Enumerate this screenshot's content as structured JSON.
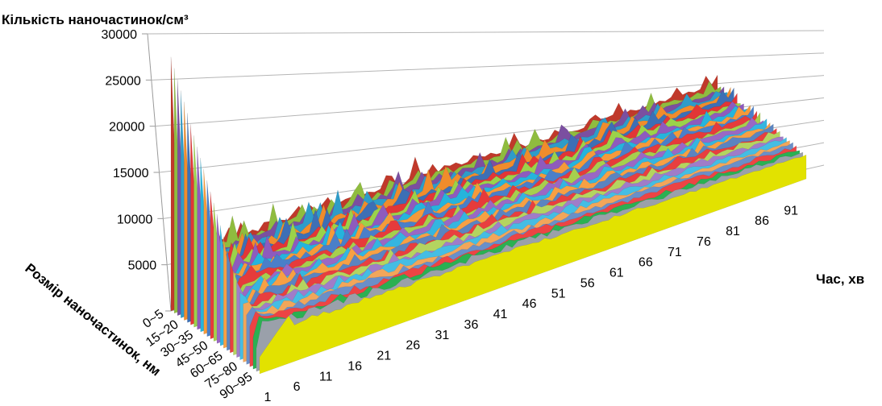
{
  "chart_data": {
    "type": "area",
    "subtype": "3d-area",
    "title": "",
    "ylabel": "Кількість наночастинок/см³",
    "xlabel": "Час, хв",
    "zlabel": "Розмір наночастинок, нм",
    "ylim": [
      0,
      30000
    ],
    "yticks": [
      "5000",
      "10000",
      "15000",
      "20000",
      "25000",
      "30000"
    ],
    "x_ticks": [
      "1",
      "6",
      "11",
      "16",
      "21",
      "26",
      "31",
      "36",
      "41",
      "46",
      "51",
      "56",
      "61",
      "66",
      "71",
      "76",
      "81",
      "86",
      "91"
    ],
    "x_count": 95,
    "z_ticks": [
      "0~5",
      "15~20",
      "30~35",
      "45~50",
      "60~65",
      "75~80",
      "90~95"
    ],
    "grid": true,
    "series_colors": [
      "#c0392b",
      "#8fbc3f",
      "#7b4fa0",
      "#2e9cc9",
      "#f08c2c",
      "#3d6fb5",
      "#e23636",
      "#9bd24a",
      "#8e5bbd",
      "#25b4dc",
      "#f59a3a",
      "#4a7fc9",
      "#e63b3b",
      "#a6cf4e",
      "#9a68c4",
      "#35b5e0",
      "#f7a044",
      "#5b84c0",
      "#e83f3f",
      "#b4d460",
      "#a07cc8",
      "#45bde3",
      "#f2a65a",
      "#6a8fc8",
      "#ed4444",
      "#2bb052",
      "#9aa0aa",
      "#e2e200"
    ],
    "series_profile": [
      {
        "name": "0~5",
        "values_approx": "peak ~28000 at time 1, falls to ~3500 by time 6, ~6000-7000 steady with spikes to ~9500 around 11-21, then ~5000-7000 through 95"
      },
      {
        "name": "90~95",
        "values_approx": "~2000 at time 1, rises to ~5500 around time 6-10, ~6000 at 21, slowly rising to ~3000 above base, near ~3500 by 95"
      }
    ]
  }
}
